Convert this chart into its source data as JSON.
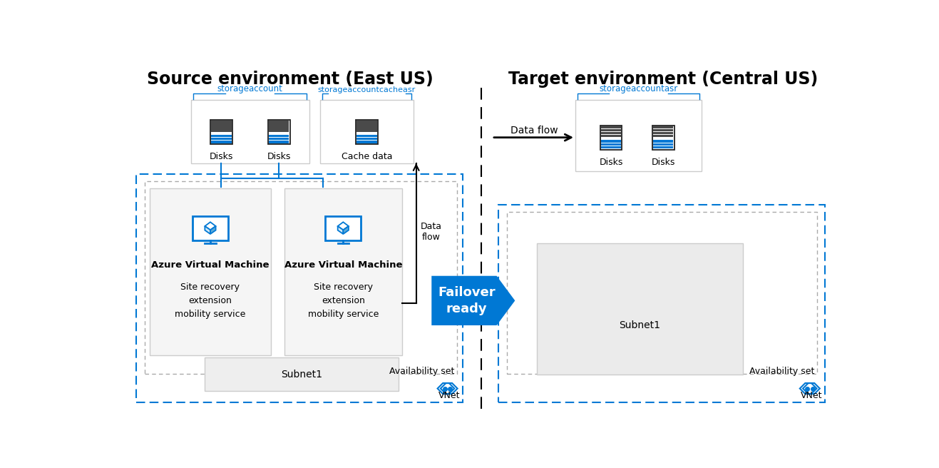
{
  "title_source": "Source environment (East US)",
  "title_target": "Target environment (Central US)",
  "title_fontsize": 17,
  "title_fontweight": "bold",
  "blue_color": "#0078D4",
  "gray_bg": "#EFEFEF",
  "storage_label1": "storageaccount",
  "storage_label2": "storageaccountcacheasr",
  "storage_label3": "storageaccountasr",
  "disk_label": "Disks",
  "cache_label": "Cache data",
  "dataflow_label": "Data flow",
  "dataflow_label2": "Data\nflow",
  "vm_title": "Azure Virtual Machine",
  "vm_subtitle": "Site recovery\nextension\nmobility service",
  "availability_set": "Availability set",
  "subnet_label": "Subnet1",
  "vnet_label": "VNet",
  "failover_label": "Failover\nready",
  "bg_color": "#FFFFFF"
}
